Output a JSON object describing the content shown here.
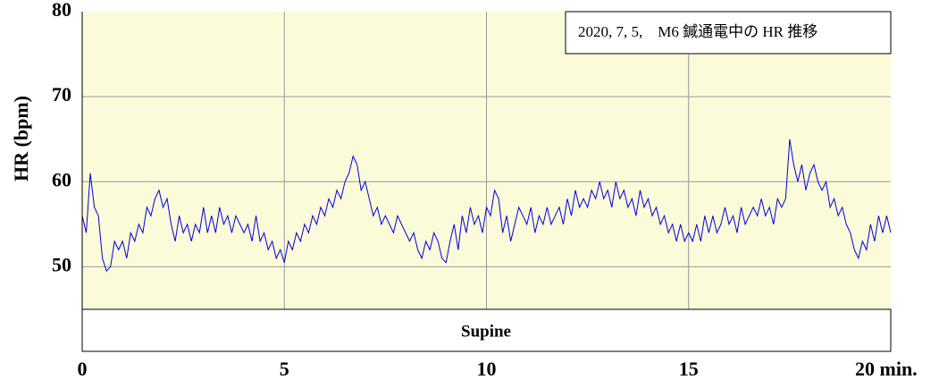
{
  "chart_data": {
    "type": "line",
    "title": "2020, 7, 5,　M6 鍼通電中の HR 推移",
    "y_label": "HR (bpm)",
    "annotation": "Supine",
    "xlim": [
      0,
      20
    ],
    "xticks": [
      0,
      5,
      10,
      15,
      {
        "value": 20,
        "label": "20 min."
      }
    ],
    "ylim": [
      45,
      80
    ],
    "yticks": [
      50,
      60,
      70,
      80
    ],
    "grid": true,
    "x": [
      0,
      0.1,
      0.2,
      0.3,
      0.4,
      0.5,
      0.6,
      0.7,
      0.8,
      0.9,
      1,
      1.1,
      1.2,
      1.3,
      1.4,
      1.5,
      1.6,
      1.7,
      1.8,
      1.9,
      2,
      2.1,
      2.2,
      2.3,
      2.4,
      2.5,
      2.6,
      2.7,
      2.8,
      2.9,
      3,
      3.1,
      3.2,
      3.3,
      3.4,
      3.5,
      3.6,
      3.7,
      3.8,
      3.9,
      4,
      4.1,
      4.2,
      4.3,
      4.4,
      4.5,
      4.6,
      4.7,
      4.8,
      4.9,
      5,
      5.1,
      5.2,
      5.3,
      5.4,
      5.5,
      5.6,
      5.7,
      5.8,
      5.9,
      6,
      6.1,
      6.2,
      6.3,
      6.4,
      6.5,
      6.6,
      6.7,
      6.8,
      6.9,
      7,
      7.1,
      7.2,
      7.3,
      7.4,
      7.5,
      7.6,
      7.7,
      7.8,
      7.9,
      8,
      8.1,
      8.2,
      8.3,
      8.4,
      8.5,
      8.6,
      8.7,
      8.8,
      8.9,
      9,
      9.1,
      9.2,
      9.3,
      9.4,
      9.5,
      9.6,
      9.7,
      9.8,
      9.9,
      10,
      10.1,
      10.2,
      10.3,
      10.4,
      10.5,
      10.6,
      10.7,
      10.8,
      10.9,
      11,
      11.1,
      11.2,
      11.3,
      11.4,
      11.5,
      11.6,
      11.7,
      11.8,
      11.9,
      12,
      12.1,
      12.2,
      12.3,
      12.4,
      12.5,
      12.6,
      12.7,
      12.8,
      12.9,
      13,
      13.1,
      13.2,
      13.3,
      13.4,
      13.5,
      13.6,
      13.7,
      13.8,
      13.9,
      14,
      14.1,
      14.2,
      14.3,
      14.4,
      14.5,
      14.6,
      14.7,
      14.8,
      14.9,
      15,
      15.1,
      15.2,
      15.3,
      15.4,
      15.5,
      15.6,
      15.7,
      15.8,
      15.9,
      16,
      16.1,
      16.2,
      16.3,
      16.4,
      16.5,
      16.6,
      16.7,
      16.8,
      16.9,
      17,
      17.1,
      17.2,
      17.3,
      17.4,
      17.5,
      17.6,
      17.7,
      17.8,
      17.9,
      18,
      18.1,
      18.2,
      18.3,
      18.4,
      18.5,
      18.6,
      18.7,
      18.8,
      18.9,
      19,
      19.1,
      19.2,
      19.3,
      19.4,
      19.5,
      19.6,
      19.7,
      19.8,
      19.9,
      20
    ],
    "series": [
      {
        "name": "HR",
        "color": "#0000dd",
        "values": [
          56,
          54,
          61,
          57,
          56,
          51,
          49.5,
          50,
          53,
          52,
          53,
          51,
          54,
          53,
          55,
          54,
          57,
          56,
          58,
          59,
          57,
          58,
          55,
          53,
          56,
          54,
          55,
          53,
          55,
          54,
          57,
          54,
          56,
          54,
          57,
          55,
          56,
          54,
          56,
          55,
          54,
          55,
          53,
          56,
          53,
          54,
          52,
          53,
          51,
          52,
          50.5,
          53,
          52,
          54,
          53,
          55,
          54,
          56,
          55,
          57,
          56,
          58,
          57,
          59,
          58,
          60,
          61,
          63,
          62,
          59,
          60,
          58,
          56,
          57,
          55,
          56,
          55,
          54,
          56,
          55,
          54,
          53,
          54,
          52,
          51,
          53,
          52,
          54,
          53,
          51,
          50.5,
          53,
          55,
          52,
          56,
          54,
          57,
          55,
          56,
          54,
          57,
          56,
          59,
          58,
          54,
          56,
          53,
          55,
          57,
          56,
          55,
          57,
          54,
          56,
          55,
          57,
          55,
          56,
          57,
          55,
          58,
          56,
          59,
          57,
          58,
          57,
          59,
          58,
          60,
          58,
          59,
          57,
          60,
          58,
          59,
          57,
          58,
          56,
          59,
          57,
          58,
          56,
          57,
          55,
          56,
          54,
          55,
          53,
          55,
          53,
          54,
          53,
          55,
          53,
          56,
          54,
          56,
          54,
          55,
          57,
          55,
          56,
          54,
          57,
          55,
          56,
          57,
          56,
          58,
          56,
          57,
          55,
          58,
          57,
          58,
          65,
          62,
          60,
          62,
          59,
          61,
          62,
          60,
          59,
          60,
          57,
          58,
          56,
          57,
          55,
          54,
          52,
          51,
          53,
          52,
          55,
          53,
          56,
          54,
          56,
          54
        ]
      }
    ]
  }
}
